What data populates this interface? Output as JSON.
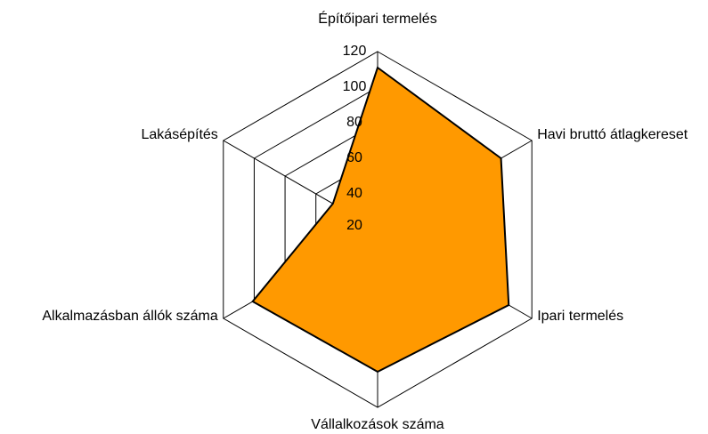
{
  "chart_data": {
    "type": "radar",
    "categories": [
      "Építőipari termelés",
      "Havi bruttó átlagkereset",
      "Ipari termelés",
      "Vállalkozások száma",
      "Alkalmazásban állók száma",
      "Lakásépítés"
    ],
    "series": [
      {
        "color": "#ff9900",
        "values": [
          111,
          100,
          105,
          100,
          101,
          49
        ]
      }
    ],
    "ylim": [
      20,
      120
    ],
    "yticks": [
      20,
      40,
      60,
      80,
      100,
      120
    ],
    "grid": true
  }
}
